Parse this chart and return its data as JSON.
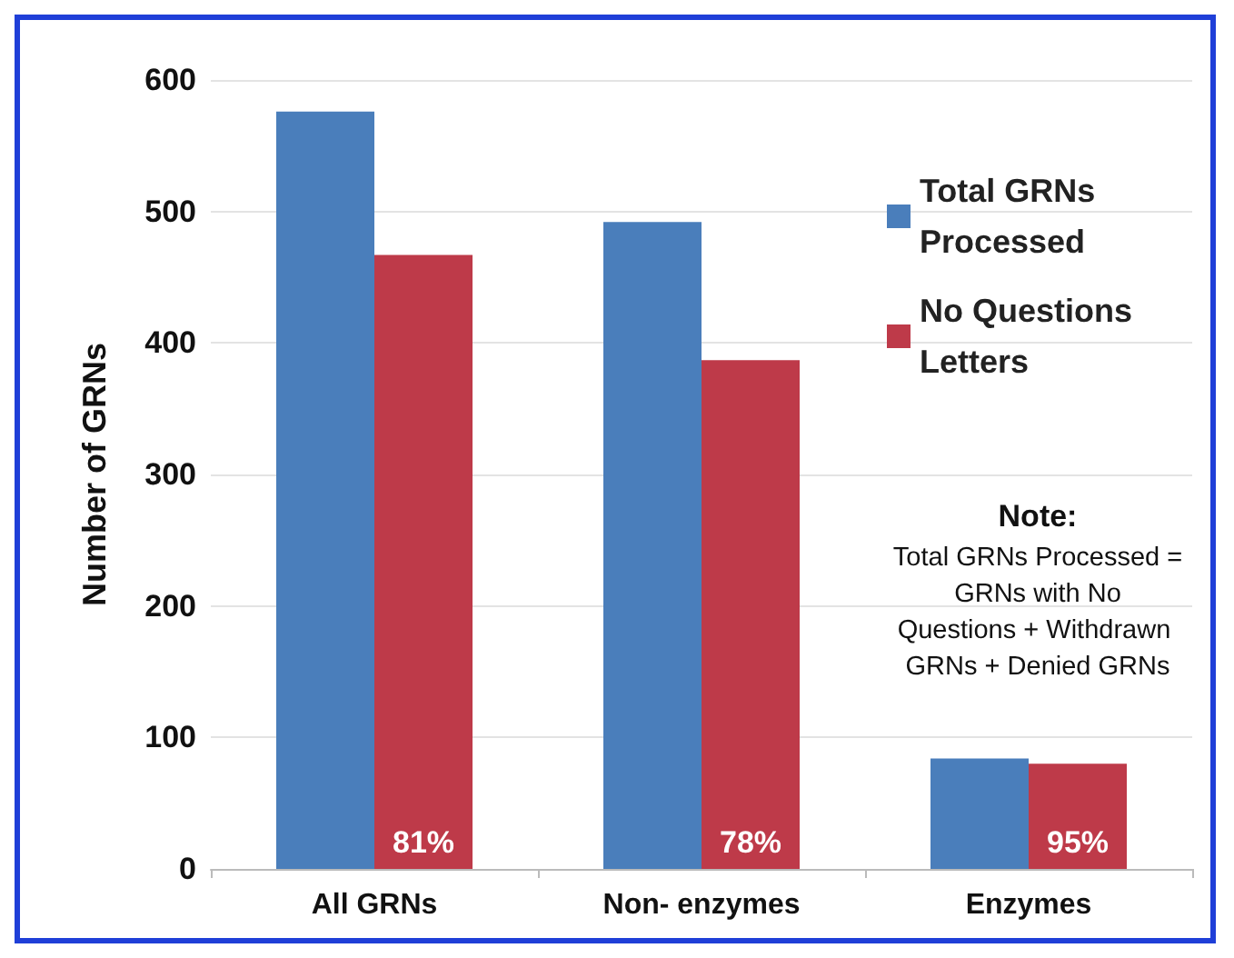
{
  "chart_data": {
    "type": "bar",
    "ylabel": "Number of GRNs",
    "categories": [
      "All GRNs",
      "Non- enzymes",
      "Enzymes"
    ],
    "series": [
      {
        "name": "Total GRNs Processed",
        "color": "#4a7ebb",
        "values": [
          576,
          492,
          84
        ]
      },
      {
        "name": "No Questions Letters",
        "color": "#be3a49",
        "values": [
          467,
          387,
          80
        ]
      }
    ],
    "ylim": [
      0,
      600
    ],
    "yticks": [
      0,
      100,
      200,
      300,
      400,
      500,
      600
    ],
    "grid": "y",
    "legend": "top right",
    "annotations": [
      "Note:",
      "Total GRNs Processed = GRNs with No Questions + Withdrawn GRNs + Denied GRNs",
      {
        "text": "81%",
        "x": "All GRNs",
        "y": 0
      },
      {
        "text": "78%",
        "x": "Non- enzymes",
        "y": 0
      },
      {
        "text": "95%",
        "x": "Enzymes",
        "y": 0
      }
    ]
  }
}
